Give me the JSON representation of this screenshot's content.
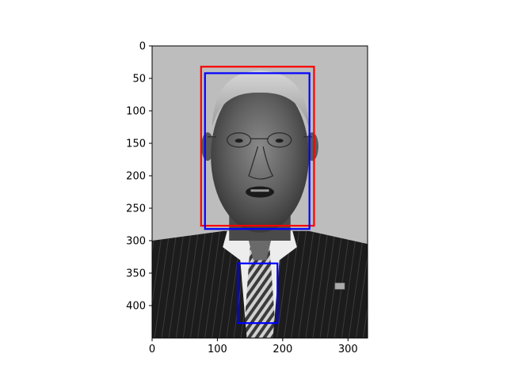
{
  "image": {
    "description_icon": "grayscale-portrait-photo",
    "width_units": 330,
    "height_units": 450
  },
  "axes": {
    "x_ticks": [
      0,
      100,
      200,
      300
    ],
    "y_ticks": [
      0,
      50,
      100,
      150,
      200,
      250,
      300,
      350,
      400
    ],
    "xlim": [
      0,
      330
    ],
    "ylim": [
      450,
      0
    ]
  },
  "boxes": [
    {
      "name": "red-face-box",
      "color": "#ff0000",
      "x0": 75,
      "y0": 32,
      "x1": 248,
      "y1": 277
    },
    {
      "name": "blue-face-box",
      "color": "#0000ff",
      "x0": 81,
      "y0": 42,
      "x1": 241,
      "y1": 282
    },
    {
      "name": "blue-tie-box",
      "color": "#0000ff",
      "x0": 131,
      "y0": 335,
      "x1": 192,
      "y1": 427
    }
  ]
}
